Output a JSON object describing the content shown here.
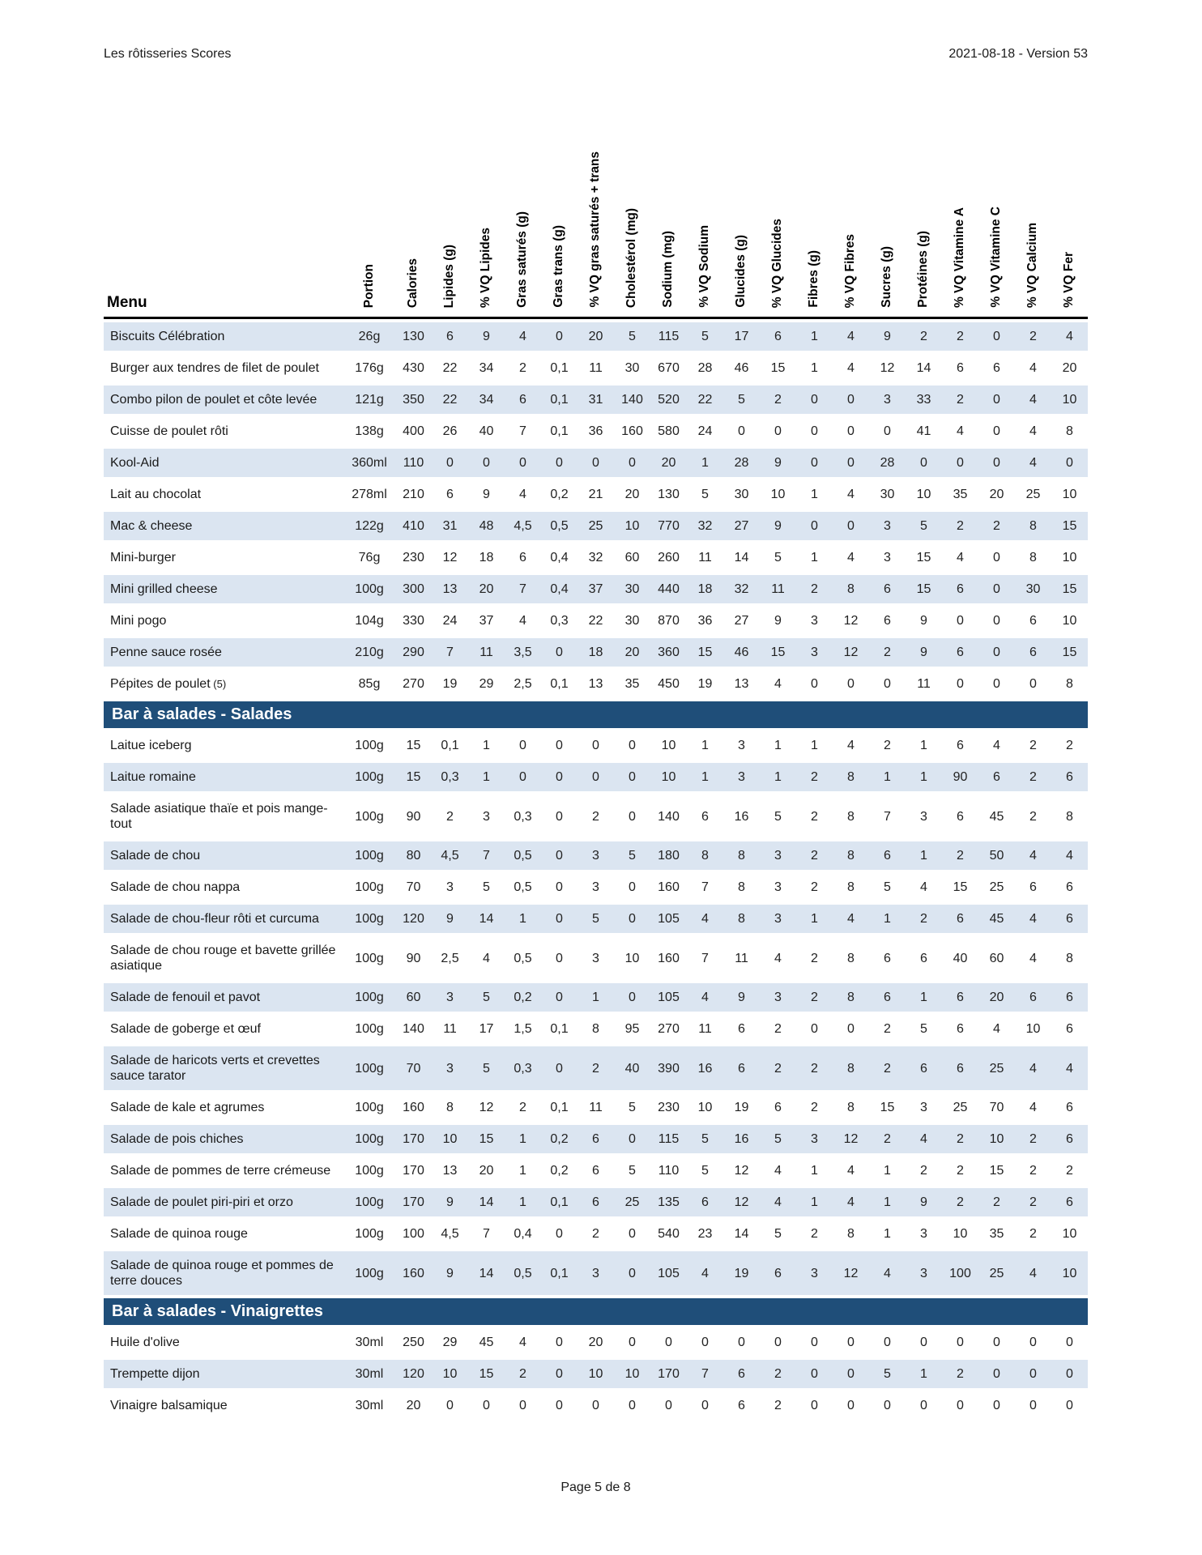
{
  "header": {
    "title": "Les rôtisseries Scores",
    "version": "2021-08-18 - Version 53"
  },
  "footer": {
    "page_label": "Page 5 de 8"
  },
  "colors": {
    "accent_dark": "#1f4e79",
    "row_shaded": "#dbe5f1",
    "header_rule": "#000000"
  },
  "table": {
    "menu_header": "Menu",
    "columns": [
      "Portion",
      "Calories",
      "Lipides (g)",
      "% VQ Lipides",
      "Gras saturés (g)",
      "Gras trans (g)",
      "% VQ gras saturés + trans",
      "Cholestérol (mg)",
      "Sodium (mg)",
      "% VQ Sodium",
      "Glucides (g)",
      "% VQ Glucides",
      "Fibres (g)",
      "% VQ Fibres",
      "Sucres (g)",
      "Protéines (g)",
      "% VQ Vitamine A",
      "% VQ Vitamine C",
      "% VQ Calcium",
      "% VQ Fer"
    ],
    "sections": [
      {
        "title": null,
        "rows": [
          {
            "name": "Biscuits Célébration",
            "suffix": "",
            "shaded": true,
            "values": [
              "26g",
              "130",
              "6",
              "9",
              "4",
              "0",
              "20",
              "5",
              "115",
              "5",
              "17",
              "6",
              "1",
              "4",
              "9",
              "2",
              "2",
              "0",
              "2",
              "4"
            ]
          },
          {
            "name": "Burger aux tendres de filet de poulet",
            "suffix": "",
            "shaded": false,
            "values": [
              "176g",
              "430",
              "22",
              "34",
              "2",
              "0,1",
              "11",
              "30",
              "670",
              "28",
              "46",
              "15",
              "1",
              "4",
              "12",
              "14",
              "6",
              "6",
              "4",
              "20"
            ]
          },
          {
            "name": "Combo pilon de poulet et côte levée",
            "suffix": "",
            "shaded": true,
            "values": [
              "121g",
              "350",
              "22",
              "34",
              "6",
              "0,1",
              "31",
              "140",
              "520",
              "22",
              "5",
              "2",
              "0",
              "0",
              "3",
              "33",
              "2",
              "0",
              "4",
              "10"
            ]
          },
          {
            "name": "Cuisse de poulet rôti",
            "suffix": "",
            "shaded": false,
            "values": [
              "138g",
              "400",
              "26",
              "40",
              "7",
              "0,1",
              "36",
              "160",
              "580",
              "24",
              "0",
              "0",
              "0",
              "0",
              "0",
              "41",
              "4",
              "0",
              "4",
              "8"
            ]
          },
          {
            "name": "Kool-Aid",
            "suffix": "",
            "shaded": true,
            "values": [
              "360ml",
              "110",
              "0",
              "0",
              "0",
              "0",
              "0",
              "0",
              "20",
              "1",
              "28",
              "9",
              "0",
              "0",
              "28",
              "0",
              "0",
              "0",
              "4",
              "0"
            ]
          },
          {
            "name": "Lait au chocolat",
            "suffix": "",
            "shaded": false,
            "values": [
              "278ml",
              "210",
              "6",
              "9",
              "4",
              "0,2",
              "21",
              "20",
              "130",
              "5",
              "30",
              "10",
              "1",
              "4",
              "30",
              "10",
              "35",
              "20",
              "25",
              "10"
            ]
          },
          {
            "name": "Mac & cheese",
            "suffix": "",
            "shaded": true,
            "values": [
              "122g",
              "410",
              "31",
              "48",
              "4,5",
              "0,5",
              "25",
              "10",
              "770",
              "32",
              "27",
              "9",
              "0",
              "0",
              "3",
              "5",
              "2",
              "2",
              "8",
              "15"
            ]
          },
          {
            "name": "Mini-burger",
            "suffix": "",
            "shaded": false,
            "values": [
              "76g",
              "230",
              "12",
              "18",
              "6",
              "0,4",
              "32",
              "60",
              "260",
              "11",
              "14",
              "5",
              "1",
              "4",
              "3",
              "15",
              "4",
              "0",
              "8",
              "10"
            ]
          },
          {
            "name": "Mini grilled cheese",
            "suffix": "",
            "shaded": true,
            "values": [
              "100g",
              "300",
              "13",
              "20",
              "7",
              "0,4",
              "37",
              "30",
              "440",
              "18",
              "32",
              "11",
              "2",
              "8",
              "6",
              "15",
              "6",
              "0",
              "30",
              "15"
            ]
          },
          {
            "name": "Mini pogo",
            "suffix": "",
            "shaded": false,
            "values": [
              "104g",
              "330",
              "24",
              "37",
              "4",
              "0,3",
              "22",
              "30",
              "870",
              "36",
              "27",
              "9",
              "3",
              "12",
              "6",
              "9",
              "0",
              "0",
              "6",
              "10"
            ]
          },
          {
            "name": "Penne sauce rosée",
            "suffix": "",
            "shaded": true,
            "values": [
              "210g",
              "290",
              "7",
              "11",
              "3,5",
              "0",
              "18",
              "20",
              "360",
              "15",
              "46",
              "15",
              "3",
              "12",
              "2",
              "9",
              "6",
              "0",
              "6",
              "15"
            ]
          },
          {
            "name": "Pépites de poulet",
            "suffix": "(5)",
            "shaded": false,
            "values": [
              "85g",
              "270",
              "19",
              "29",
              "2,5",
              "0,1",
              "13",
              "35",
              "450",
              "19",
              "13",
              "4",
              "0",
              "0",
              "0",
              "11",
              "0",
              "0",
              "0",
              "8"
            ]
          }
        ]
      },
      {
        "title": "Bar à salades - Salades",
        "rows": [
          {
            "name": "Laitue iceberg",
            "suffix": "",
            "shaded": false,
            "values": [
              "100g",
              "15",
              "0,1",
              "1",
              "0",
              "0",
              "0",
              "0",
              "10",
              "1",
              "3",
              "1",
              "1",
              "4",
              "2",
              "1",
              "6",
              "4",
              "2",
              "2"
            ]
          },
          {
            "name": "Laitue romaine",
            "suffix": "",
            "shaded": true,
            "values": [
              "100g",
              "15",
              "0,3",
              "1",
              "0",
              "0",
              "0",
              "0",
              "10",
              "1",
              "3",
              "1",
              "2",
              "8",
              "1",
              "1",
              "90",
              "6",
              "2",
              "6"
            ]
          },
          {
            "name": "Salade asiatique thaïe et pois mange-tout",
            "suffix": "",
            "shaded": false,
            "values": [
              "100g",
              "90",
              "2",
              "3",
              "0,3",
              "0",
              "2",
              "0",
              "140",
              "6",
              "16",
              "5",
              "2",
              "8",
              "7",
              "3",
              "6",
              "45",
              "2",
              "8"
            ]
          },
          {
            "name": "Salade de chou",
            "suffix": "",
            "shaded": true,
            "values": [
              "100g",
              "80",
              "4,5",
              "7",
              "0,5",
              "0",
              "3",
              "5",
              "180",
              "8",
              "8",
              "3",
              "2",
              "8",
              "6",
              "1",
              "2",
              "50",
              "4",
              "4"
            ]
          },
          {
            "name": "Salade de chou nappa",
            "suffix": "",
            "shaded": false,
            "values": [
              "100g",
              "70",
              "3",
              "5",
              "0,5",
              "0",
              "3",
              "0",
              "160",
              "7",
              "8",
              "3",
              "2",
              "8",
              "5",
              "4",
              "15",
              "25",
              "6",
              "6"
            ]
          },
          {
            "name": "Salade de chou-fleur rôti et curcuma",
            "suffix": "",
            "shaded": true,
            "values": [
              "100g",
              "120",
              "9",
              "14",
              "1",
              "0",
              "5",
              "0",
              "105",
              "4",
              "8",
              "3",
              "1",
              "4",
              "1",
              "2",
              "6",
              "45",
              "4",
              "6"
            ]
          },
          {
            "name": "Salade de chou rouge et bavette grillée asiatique",
            "suffix": "",
            "shaded": false,
            "values": [
              "100g",
              "90",
              "2,5",
              "4",
              "0,5",
              "0",
              "3",
              "10",
              "160",
              "7",
              "11",
              "4",
              "2",
              "8",
              "6",
              "6",
              "40",
              "60",
              "4",
              "8"
            ]
          },
          {
            "name": "Salade de fenouil et pavot",
            "suffix": "",
            "shaded": true,
            "values": [
              "100g",
              "60",
              "3",
              "5",
              "0,2",
              "0",
              "1",
              "0",
              "105",
              "4",
              "9",
              "3",
              "2",
              "8",
              "6",
              "1",
              "6",
              "20",
              "6",
              "6"
            ]
          },
          {
            "name": "Salade de goberge et œuf",
            "suffix": "",
            "shaded": false,
            "values": [
              "100g",
              "140",
              "11",
              "17",
              "1,5",
              "0,1",
              "8",
              "95",
              "270",
              "11",
              "6",
              "2",
              "0",
              "0",
              "2",
              "5",
              "6",
              "4",
              "10",
              "6"
            ]
          },
          {
            "name": "Salade de haricots verts et crevettes sauce tarator",
            "suffix": "",
            "shaded": true,
            "values": [
              "100g",
              "70",
              "3",
              "5",
              "0,3",
              "0",
              "2",
              "40",
              "390",
              "16",
              "6",
              "2",
              "2",
              "8",
              "2",
              "6",
              "6",
              "25",
              "4",
              "4"
            ]
          },
          {
            "name": "Salade de kale et agrumes",
            "suffix": "",
            "shaded": false,
            "values": [
              "100g",
              "160",
              "8",
              "12",
              "2",
              "0,1",
              "11",
              "5",
              "230",
              "10",
              "19",
              "6",
              "2",
              "8",
              "15",
              "3",
              "25",
              "70",
              "4",
              "6"
            ]
          },
          {
            "name": "Salade de pois chiches",
            "suffix": "",
            "shaded": true,
            "values": [
              "100g",
              "170",
              "10",
              "15",
              "1",
              "0,2",
              "6",
              "0",
              "115",
              "5",
              "16",
              "5",
              "3",
              "12",
              "2",
              "4",
              "2",
              "10",
              "2",
              "6"
            ]
          },
          {
            "name": "Salade de pommes de terre crémeuse",
            "suffix": "",
            "shaded": false,
            "values": [
              "100g",
              "170",
              "13",
              "20",
              "1",
              "0,2",
              "6",
              "5",
              "110",
              "5",
              "12",
              "4",
              "1",
              "4",
              "1",
              "2",
              "2",
              "15",
              "2",
              "2"
            ]
          },
          {
            "name": "Salade de poulet piri-piri et orzo",
            "suffix": "",
            "shaded": true,
            "values": [
              "100g",
              "170",
              "9",
              "14",
              "1",
              "0,1",
              "6",
              "25",
              "135",
              "6",
              "12",
              "4",
              "1",
              "4",
              "1",
              "9",
              "2",
              "2",
              "2",
              "6"
            ]
          },
          {
            "name": "Salade de quinoa rouge",
            "suffix": "",
            "shaded": false,
            "values": [
              "100g",
              "100",
              "4,5",
              "7",
              "0,4",
              "0",
              "2",
              "0",
              "540",
              "23",
              "14",
              "5",
              "2",
              "8",
              "1",
              "3",
              "10",
              "35",
              "2",
              "10"
            ]
          },
          {
            "name": "Salade de quinoa rouge et pommes de terre douces",
            "suffix": "",
            "shaded": true,
            "values": [
              "100g",
              "160",
              "9",
              "14",
              "0,5",
              "0,1",
              "3",
              "0",
              "105",
              "4",
              "19",
              "6",
              "3",
              "12",
              "4",
              "3",
              "100",
              "25",
              "4",
              "10"
            ]
          }
        ]
      },
      {
        "title": "Bar à salades - Vinaigrettes",
        "rows": [
          {
            "name": "Huile d'olive",
            "suffix": "",
            "shaded": false,
            "values": [
              "30ml",
              "250",
              "29",
              "45",
              "4",
              "0",
              "20",
              "0",
              "0",
              "0",
              "0",
              "0",
              "0",
              "0",
              "0",
              "0",
              "0",
              "0",
              "0",
              "0"
            ]
          },
          {
            "name": "Trempette dijon",
            "suffix": "",
            "shaded": true,
            "values": [
              "30ml",
              "120",
              "10",
              "15",
              "2",
              "0",
              "10",
              "10",
              "170",
              "7",
              "6",
              "2",
              "0",
              "0",
              "5",
              "1",
              "2",
              "0",
              "0",
              "0"
            ]
          },
          {
            "name": "Vinaigre balsamique",
            "suffix": "",
            "shaded": false,
            "values": [
              "30ml",
              "20",
              "0",
              "0",
              "0",
              "0",
              "0",
              "0",
              "0",
              "0",
              "6",
              "2",
              "0",
              "0",
              "0",
              "0",
              "0",
              "0",
              "0",
              "0"
            ]
          }
        ]
      }
    ]
  }
}
